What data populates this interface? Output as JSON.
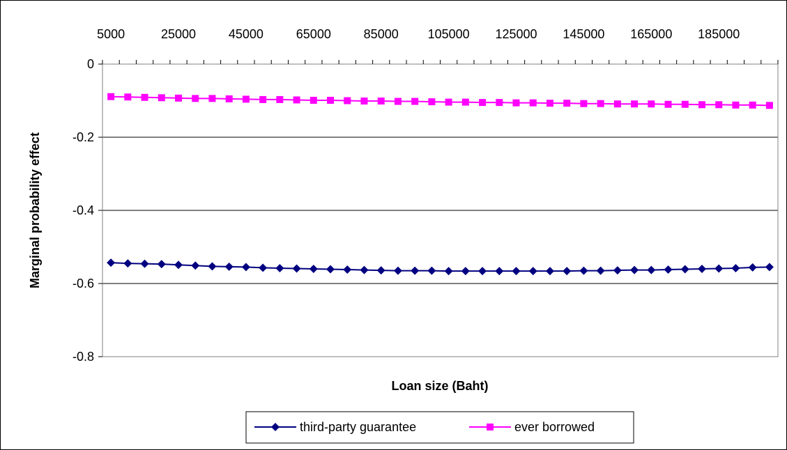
{
  "chart_data": {
    "type": "line",
    "xlabel": "Loan size (Baht)",
    "ylabel": "Marginal probability effect",
    "x_tick_labels": [
      "5000",
      "25000",
      "45000",
      "65000",
      "85000",
      "105000",
      "125000",
      "145000",
      "165000",
      "185000"
    ],
    "y_tick_labels": [
      "0",
      "-0.2",
      "-0.4",
      "-0.6",
      "-0.8"
    ],
    "ylim": [
      -0.8,
      0
    ],
    "xlim": [
      5000,
      200000
    ],
    "x_axis_position": "top",
    "grid": true,
    "legend_position": "bottom",
    "x": [
      5000,
      10000,
      15000,
      20000,
      25000,
      30000,
      35000,
      40000,
      45000,
      50000,
      55000,
      60000,
      65000,
      70000,
      75000,
      80000,
      85000,
      90000,
      95000,
      100000,
      105000,
      110000,
      115000,
      120000,
      125000,
      130000,
      135000,
      140000,
      145000,
      150000,
      155000,
      160000,
      165000,
      170000,
      175000,
      180000,
      185000,
      190000,
      195000,
      200000
    ],
    "series": [
      {
        "name": "third-party guarantee",
        "color": "#000080",
        "marker": "diamond",
        "values": [
          -0.543,
          -0.545,
          -0.546,
          -0.547,
          -0.549,
          -0.551,
          -0.553,
          -0.554,
          -0.555,
          -0.557,
          -0.558,
          -0.559,
          -0.56,
          -0.561,
          -0.562,
          -0.563,
          -0.564,
          -0.565,
          -0.565,
          -0.565,
          -0.566,
          -0.566,
          -0.566,
          -0.566,
          -0.566,
          -0.566,
          -0.566,
          -0.566,
          -0.565,
          -0.565,
          -0.564,
          -0.563,
          -0.563,
          -0.562,
          -0.561,
          -0.56,
          -0.559,
          -0.558,
          -0.556,
          -0.555
        ]
      },
      {
        "name": "ever borrowed",
        "color": "#ff00ff",
        "marker": "square",
        "values": [
          -0.089,
          -0.09,
          -0.091,
          -0.092,
          -0.093,
          -0.094,
          -0.094,
          -0.095,
          -0.096,
          -0.097,
          -0.097,
          -0.098,
          -0.099,
          -0.099,
          -0.1,
          -0.101,
          -0.101,
          -0.102,
          -0.102,
          -0.103,
          -0.104,
          -0.104,
          -0.105,
          -0.105,
          -0.106,
          -0.106,
          -0.107,
          -0.107,
          -0.108,
          -0.108,
          -0.109,
          -0.109,
          -0.109,
          -0.11,
          -0.11,
          -0.111,
          -0.111,
          -0.112,
          -0.112,
          -0.113
        ]
      }
    ]
  }
}
